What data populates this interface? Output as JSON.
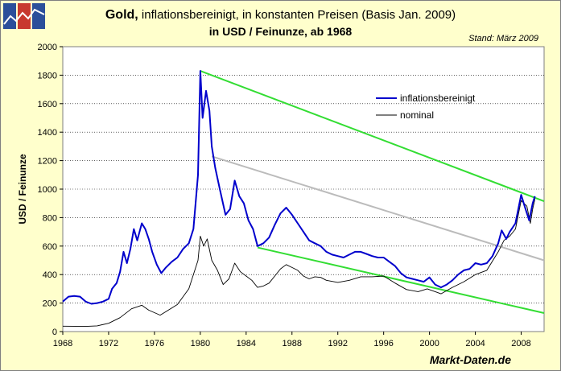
{
  "header": {
    "title_bold": "Gold,",
    "title_rest": "inflationsbereinigt, in konstanten Preisen (Basis Jan. 2009)",
    "subtitle": "in USD / Feinunze, ab 1968",
    "stand": "Stand: März 2009",
    "watermark": "Markt-Daten.de"
  },
  "chart_data": {
    "type": "line",
    "title": "Gold, inflationsbereinigt, in konstanten Preisen (Basis Jan. 2009)",
    "subtitle": "in USD / Feinunze, ab 1968",
    "xlabel": "",
    "ylabel": "USD / Feinunze",
    "xlim": [
      1968,
      2010
    ],
    "ylim": [
      0,
      2000
    ],
    "x_ticks": [
      1968,
      1972,
      1976,
      1980,
      1984,
      1988,
      1992,
      1996,
      2000,
      2004,
      2008
    ],
    "y_ticks": [
      0,
      200,
      400,
      600,
      800,
      1000,
      1200,
      1400,
      1600,
      1800,
      2000
    ],
    "grid": "horizontal-dotted",
    "legend_position": "top-right",
    "series": [
      {
        "name": "inflationsbereinigt",
        "color": "#0000cc",
        "points": [
          [
            1968,
            210
          ],
          [
            1968.5,
            245
          ],
          [
            1969,
            250
          ],
          [
            1969.5,
            245
          ],
          [
            1970,
            210
          ],
          [
            1970.5,
            195
          ],
          [
            1971,
            200
          ],
          [
            1971.5,
            210
          ],
          [
            1972,
            230
          ],
          [
            1972.3,
            300
          ],
          [
            1972.7,
            340
          ],
          [
            1973,
            420
          ],
          [
            1973.3,
            560
          ],
          [
            1973.6,
            480
          ],
          [
            1973.9,
            580
          ],
          [
            1974.2,
            720
          ],
          [
            1974.5,
            640
          ],
          [
            1974.9,
            760
          ],
          [
            1975.2,
            720
          ],
          [
            1975.5,
            650
          ],
          [
            1975.8,
            560
          ],
          [
            1976.2,
            470
          ],
          [
            1976.6,
            410
          ],
          [
            1977,
            450
          ],
          [
            1977.5,
            490
          ],
          [
            1978,
            520
          ],
          [
            1978.5,
            580
          ],
          [
            1979,
            620
          ],
          [
            1979.4,
            720
          ],
          [
            1979.8,
            1100
          ],
          [
            1980.0,
            1830
          ],
          [
            1980.2,
            1500
          ],
          [
            1980.5,
            1690
          ],
          [
            1980.8,
            1550
          ],
          [
            1981.0,
            1300
          ],
          [
            1981.3,
            1150
          ],
          [
            1981.7,
            1000
          ],
          [
            1982.2,
            820
          ],
          [
            1982.6,
            860
          ],
          [
            1983.0,
            1060
          ],
          [
            1983.4,
            950
          ],
          [
            1983.8,
            900
          ],
          [
            1984.2,
            780
          ],
          [
            1984.6,
            720
          ],
          [
            1985.0,
            600
          ],
          [
            1985.5,
            620
          ],
          [
            1986.0,
            660
          ],
          [
            1986.5,
            750
          ],
          [
            1987.0,
            830
          ],
          [
            1987.5,
            870
          ],
          [
            1988.0,
            820
          ],
          [
            1988.5,
            760
          ],
          [
            1989.0,
            700
          ],
          [
            1989.5,
            640
          ],
          [
            1990.0,
            620
          ],
          [
            1990.5,
            600
          ],
          [
            1991.0,
            560
          ],
          [
            1991.5,
            540
          ],
          [
            1992.0,
            530
          ],
          [
            1992.5,
            520
          ],
          [
            1993.0,
            540
          ],
          [
            1993.5,
            560
          ],
          [
            1994.0,
            560
          ],
          [
            1994.5,
            545
          ],
          [
            1995.0,
            530
          ],
          [
            1995.5,
            520
          ],
          [
            1996.0,
            520
          ],
          [
            1996.5,
            490
          ],
          [
            1997.0,
            460
          ],
          [
            1997.5,
            410
          ],
          [
            1998.0,
            380
          ],
          [
            1998.5,
            370
          ],
          [
            1999.0,
            360
          ],
          [
            1999.5,
            350
          ],
          [
            2000.0,
            380
          ],
          [
            2000.5,
            330
          ],
          [
            2001.0,
            310
          ],
          [
            2001.5,
            330
          ],
          [
            2002.0,
            360
          ],
          [
            2002.5,
            400
          ],
          [
            2003.0,
            430
          ],
          [
            2003.5,
            440
          ],
          [
            2004.0,
            480
          ],
          [
            2004.5,
            470
          ],
          [
            2005.0,
            480
          ],
          [
            2005.5,
            530
          ],
          [
            2006.0,
            620
          ],
          [
            2006.3,
            710
          ],
          [
            2006.7,
            650
          ],
          [
            2007.0,
            700
          ],
          [
            2007.5,
            760
          ],
          [
            2008.0,
            960
          ],
          [
            2008.3,
            880
          ],
          [
            2008.7,
            780
          ],
          [
            2009.0,
            900
          ],
          [
            2009.2,
            950
          ]
        ]
      },
      {
        "name": "nominal",
        "color": "#000000",
        "points": [
          [
            1968,
            38
          ],
          [
            1970,
            36
          ],
          [
            1971,
            40
          ],
          [
            1972,
            58
          ],
          [
            1973,
            98
          ],
          [
            1974,
            160
          ],
          [
            1974.9,
            185
          ],
          [
            1975.5,
            150
          ],
          [
            1976.5,
            115
          ],
          [
            1977,
            140
          ],
          [
            1978,
            190
          ],
          [
            1979,
            300
          ],
          [
            1979.8,
            500
          ],
          [
            1980.0,
            670
          ],
          [
            1980.3,
            600
          ],
          [
            1980.6,
            650
          ],
          [
            1981.0,
            500
          ],
          [
            1981.5,
            430
          ],
          [
            1982.0,
            330
          ],
          [
            1982.5,
            370
          ],
          [
            1983.0,
            480
          ],
          [
            1983.5,
            420
          ],
          [
            1984.0,
            390
          ],
          [
            1984.5,
            360
          ],
          [
            1985.0,
            310
          ],
          [
            1985.5,
            320
          ],
          [
            1986.0,
            340
          ],
          [
            1986.5,
            390
          ],
          [
            1987.0,
            440
          ],
          [
            1987.5,
            470
          ],
          [
            1988.0,
            450
          ],
          [
            1988.5,
            430
          ],
          [
            1989.0,
            390
          ],
          [
            1989.5,
            370
          ],
          [
            1990.0,
            385
          ],
          [
            1990.5,
            380
          ],
          [
            1991.0,
            360
          ],
          [
            1992.0,
            345
          ],
          [
            1993.0,
            360
          ],
          [
            1994.0,
            385
          ],
          [
            1995.0,
            385
          ],
          [
            1996.0,
            390
          ],
          [
            1997.0,
            340
          ],
          [
            1998.0,
            295
          ],
          [
            1999.0,
            280
          ],
          [
            1999.8,
            300
          ],
          [
            2000.5,
            280
          ],
          [
            2001.0,
            265
          ],
          [
            2002.0,
            310
          ],
          [
            2003.0,
            350
          ],
          [
            2004.0,
            400
          ],
          [
            2005.0,
            430
          ],
          [
            2006.0,
            560
          ],
          [
            2006.5,
            640
          ],
          [
            2007.0,
            670
          ],
          [
            2007.5,
            720
          ],
          [
            2008.0,
            920
          ],
          [
            2008.5,
            880
          ],
          [
            2008.8,
            760
          ],
          [
            2009.0,
            860
          ],
          [
            2009.2,
            930
          ]
        ]
      }
    ],
    "trendlines": [
      {
        "name": "upper-trend",
        "color": "#33dd33",
        "from": [
          1980.0,
          1830
        ],
        "to": [
          2010.0,
          915
        ]
      },
      {
        "name": "grey-trend",
        "color": "#bbbbbb",
        "from": [
          1981.0,
          1230
        ],
        "to": [
          2010.0,
          500
        ]
      },
      {
        "name": "lower-trend",
        "color": "#33dd33",
        "from": [
          1985.0,
          590
        ],
        "to": [
          2010.0,
          130
        ]
      }
    ]
  }
}
